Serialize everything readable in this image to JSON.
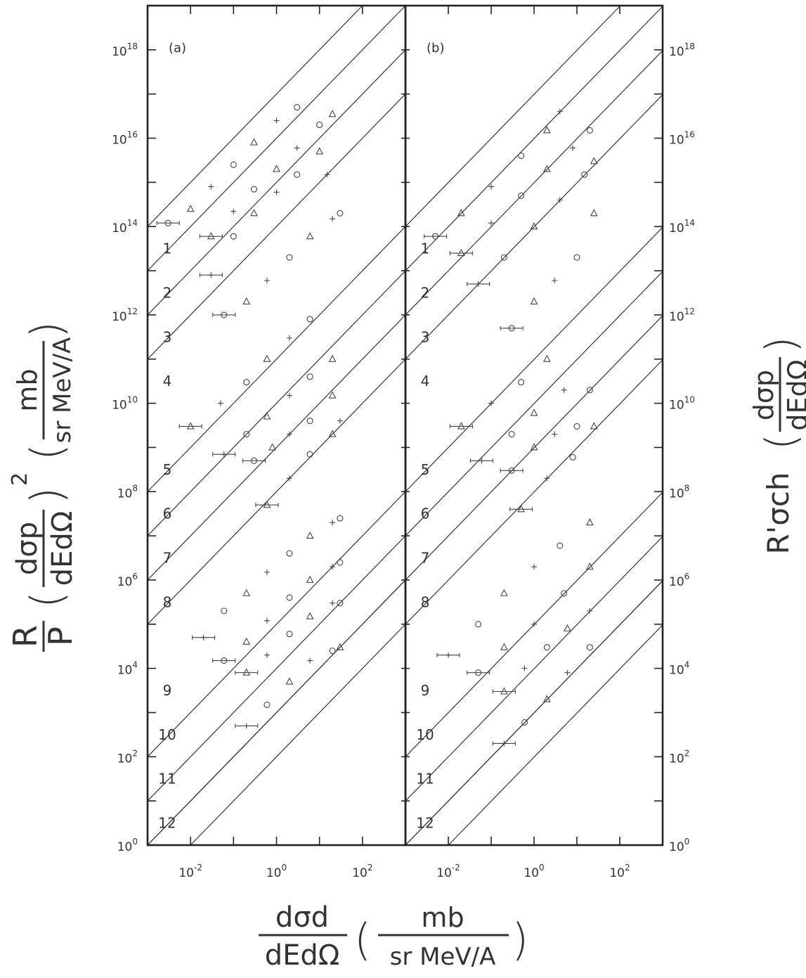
{
  "chart_data": {
    "type": "scatter",
    "panels": [
      {
        "label": "(a)",
        "series": [
          {
            "name": "1",
            "x": [
              0.003,
              0.01,
              0.03,
              0.1,
              0.3,
              1,
              3
            ],
            "y": [
              120000000000000.0,
              250000000000000.0,
              800000000000000.0,
              2500000000000000.0,
              8000000000000000.0,
              2.5e+16,
              5e+16
            ]
          },
          {
            "name": "2",
            "x": [
              0.03,
              0.1,
              0.3,
              1,
              3,
              10,
              20
            ],
            "y": [
              60000000000000.0,
              220000000000000.0,
              700000000000000.0,
              2000000000000000.0,
              6000000000000000.0,
              2e+16,
              3.5e+16
            ]
          },
          {
            "name": "3",
            "x": [
              0.03,
              0.1,
              0.3,
              1,
              3,
              10,
              15
            ],
            "y": [
              8000000000000.0,
              60000000000000.0,
              200000000000000.0,
              600000000000000.0,
              1500000000000000.0,
              5000000000000000.0,
              1500000000000000.0
            ]
          },
          {
            "name": "4",
            "x": [
              0.06,
              0.2,
              0.6,
              2,
              6,
              20,
              30
            ],
            "y": [
              1000000000000.0,
              2000000000000.0,
              6000000000000.0,
              20000000000000.0,
              60000000000000.0,
              150000000000000.0,
              200000000000000.0
            ]
          },
          {
            "name": "5",
            "x": [
              0.01,
              0.05,
              0.2,
              0.6,
              2,
              6
            ],
            "y": [
              3000000000.0,
              10000000000.0,
              30000000000.0,
              100000000000.0,
              300000000000.0,
              800000000000.0
            ]
          },
          {
            "name": "6",
            "x": [
              0.06,
              0.2,
              0.6,
              2,
              6,
              20
            ],
            "y": [
              700000000.0,
              2000000000.0,
              5000000000.0,
              15000000000.0,
              40000000000.0,
              100000000000.0
            ]
          },
          {
            "name": "7",
            "x": [
              0.3,
              0.8,
              2,
              6,
              20
            ],
            "y": [
              500000000.0,
              1000000000.0,
              2000000000.0,
              4000000000.0,
              15000000000.0
            ]
          },
          {
            "name": "8",
            "x": [
              0.6,
              2,
              6,
              20,
              30
            ],
            "y": [
              50000000.0,
              200000000.0,
              700000000.0,
              2000000000.0,
              4000000000.0
            ]
          },
          {
            "name": "9",
            "x": [
              0.02,
              0.06,
              0.2,
              0.6,
              2,
              6,
              20,
              30
            ],
            "y": [
              50000.0,
              200000.0,
              500000.0,
              1500000.0,
              4000000.0,
              10000000.0,
              20000000.0,
              25000000.0
            ]
          },
          {
            "name": "10",
            "x": [
              0.06,
              0.2,
              0.6,
              2,
              6,
              20,
              30
            ],
            "y": [
              15000.0,
              40000.0,
              120000.0,
              400000.0,
              1000000.0,
              2000000.0,
              2500000.0
            ]
          },
          {
            "name": "11",
            "x": [
              0.2,
              0.6,
              2,
              6,
              20,
              30
            ],
            "y": [
              8000.0,
              20000.0,
              60000.0,
              150000.0,
              300000.0,
              300000.0
            ]
          },
          {
            "name": "12",
            "x": [
              0.2,
              0.6,
              2,
              6,
              20,
              30
            ],
            "y": [
              500,
              1500,
              5000,
              15000.0,
              25000.0,
              30000.0
            ]
          }
        ]
      },
      {
        "label": "(b)",
        "series": [
          {
            "name": "1",
            "x": [
              0.005,
              0.02,
              0.1,
              0.5,
              2,
              4
            ],
            "y": [
              60000000000000.0,
              200000000000000.0,
              800000000000000.0,
              4000000000000000.0,
              1.5e+16,
              4e+16
            ]
          },
          {
            "name": "2",
            "x": [
              0.02,
              0.1,
              0.5,
              2,
              8,
              20
            ],
            "y": [
              25000000000000.0,
              120000000000000.0,
              500000000000000.0,
              2000000000000000.0,
              6000000000000000.0,
              1.5e+16
            ]
          },
          {
            "name": "3",
            "x": [
              0.05,
              0.2,
              1,
              4,
              15,
              25
            ],
            "y": [
              5000000000000.0,
              20000000000000.0,
              100000000000000.0,
              400000000000000.0,
              1500000000000000.0,
              3000000000000000.0
            ]
          },
          {
            "name": "4",
            "x": [
              0.3,
              1,
              3,
              10,
              25
            ],
            "y": [
              500000000000.0,
              2000000000000.0,
              6000000000000.0,
              20000000000000.0,
              200000000000000.0
            ]
          },
          {
            "name": "5",
            "x": [
              0.02,
              0.1,
              0.5,
              2
            ],
            "y": [
              3000000000.0,
              10000000000.0,
              30000000000.0,
              100000000000.0
            ]
          },
          {
            "name": "6",
            "x": [
              0.06,
              0.3,
              1,
              5,
              20
            ],
            "y": [
              500000000.0,
              2000000000.0,
              6000000000.0,
              20000000000.0,
              20000000000.0
            ]
          },
          {
            "name": "7",
            "x": [
              0.3,
              1,
              3,
              10
            ],
            "y": [
              300000000.0,
              1000000000.0,
              2000000000.0,
              3000000000.0
            ]
          },
          {
            "name": "8",
            "x": [
              0.5,
              2,
              8,
              25
            ],
            "y": [
              40000000.0,
              200000000.0,
              600000000.0,
              3000000000.0
            ]
          },
          {
            "name": "9",
            "x": [
              0.01,
              0.05,
              0.2,
              1,
              4,
              20
            ],
            "y": [
              20000.0,
              100000.0,
              500000.0,
              2000000.0,
              6000000.0,
              20000000.0
            ]
          },
          {
            "name": "10",
            "x": [
              0.05,
              0.2,
              1,
              5,
              20
            ],
            "y": [
              8000.0,
              30000.0,
              100000.0,
              500000.0,
              2000000.0
            ]
          },
          {
            "name": "11",
            "x": [
              0.2,
              0.6,
              2,
              6,
              20
            ],
            "y": [
              3000.0,
              10000.0,
              30000.0,
              80000.0,
              200000.0
            ]
          },
          {
            "name": "12",
            "x": [
              0.2,
              0.6,
              2,
              6,
              20
            ],
            "y": [
              200,
              600,
              2000,
              8000,
              30000.0
            ]
          }
        ]
      }
    ],
    "x_range": [
      0.001,
      1000
    ],
    "y_range": [
      1,
      1e+19
    ],
    "log_x": true,
    "log_y": true,
    "grid": false,
    "x_tick_labels": [
      "10^-2",
      "10^0",
      "10^2"
    ],
    "y_tick_labels": [
      "10^0",
      "10^2",
      "10^4",
      "10^6",
      "10^8",
      "10^10",
      "10^12",
      "10^14",
      "10^16",
      "10^18"
    ]
  },
  "labels": {
    "panel_a": "(a)",
    "panel_b": "(b)",
    "line_numbers": [
      "1",
      "2",
      "3",
      "4",
      "5",
      "6",
      "7",
      "8",
      "9",
      "10",
      "11",
      "12"
    ],
    "x_tick_base": [
      "10",
      "10",
      "10"
    ],
    "x_tick_exp": [
      "-2",
      "0",
      "2"
    ],
    "y_tick_base": [
      "10",
      "10",
      "10",
      "10",
      "10",
      "10",
      "10",
      "10",
      "10",
      "10"
    ],
    "y_tick_exp": [
      "0",
      "2",
      "4",
      "6",
      "8",
      "10",
      "12",
      "14",
      "16",
      "18"
    ]
  },
  "axis_labels": {
    "left_R": "R",
    "left_P": "P",
    "left_dsp": "dσp",
    "left_dEdO": "dEdΩ",
    "left_sq": "2",
    "left_mb": "mb",
    "left_units": "sr MeV/A",
    "right_Rsigma": "R'σch",
    "right_dsp": "dσp",
    "right_dEdO": "dEdΩ",
    "bottom_dsd": "dσd",
    "bottom_dEdO": "dEdΩ",
    "bottom_mb": "mb",
    "bottom_units": "sr MeV/A"
  }
}
